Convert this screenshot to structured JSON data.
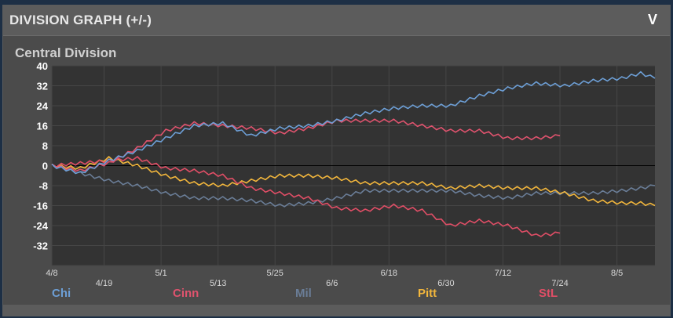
{
  "header": {
    "title": "DIVISION GRAPH (+/-)",
    "collapse_icon": "chevron-down-icon",
    "collapse_label": "V"
  },
  "chart_data": {
    "type": "line",
    "title": "Central Division",
    "xlabel": "",
    "ylabel": "",
    "ylim": [
      -40,
      40
    ],
    "y_ticks": [
      40,
      32,
      24,
      16,
      8,
      0,
      -8,
      -16,
      -24,
      -32
    ],
    "x_ticks": [
      "4/8",
      "4/19",
      "5/1",
      "5/13",
      "5/25",
      "6/6",
      "6/18",
      "6/30",
      "7/12",
      "7/24",
      "8/5"
    ],
    "x_tick_days": [
      0,
      11,
      23,
      35,
      47,
      59,
      71,
      83,
      95,
      107,
      119
    ],
    "x_range_days": [
      0,
      127
    ],
    "grid": true,
    "legend_position": "bottom",
    "series": [
      {
        "name": "Chi",
        "color": "#6d9fd6",
        "x": [
          0,
          6,
          12,
          18,
          24,
          30,
          36,
          42,
          48,
          54,
          60,
          66,
          72,
          78,
          84,
          90,
          96,
          102,
          108,
          114,
          120,
          124,
          127
        ],
        "values": [
          0,
          -3,
          2,
          6,
          11,
          16,
          17,
          12,
          15,
          16,
          18,
          21,
          23,
          24,
          24,
          28,
          31,
          33,
          32,
          34,
          35,
          37,
          35
        ]
      },
      {
        "name": "Cinn",
        "color": "#e0536e",
        "x": [
          0,
          6,
          12,
          18,
          24,
          30,
          36,
          42,
          48,
          54,
          60,
          66,
          72,
          78,
          84,
          90,
          96,
          102,
          107
        ],
        "values": [
          0,
          -2,
          1,
          7,
          14,
          17,
          16,
          15,
          13,
          15,
          18,
          18,
          18,
          16,
          14,
          14,
          11,
          11,
          12
        ]
      },
      {
        "name": "Mil",
        "color": "#6a7d97",
        "x": [
          0,
          6,
          12,
          18,
          24,
          30,
          36,
          42,
          48,
          54,
          60,
          66,
          72,
          78,
          84,
          90,
          96,
          102,
          108,
          114,
          120,
          124,
          127
        ],
        "values": [
          0,
          -3,
          -6,
          -8,
          -11,
          -13,
          -13,
          -14,
          -16,
          -15,
          -13,
          -10,
          -10,
          -10,
          -10,
          -12,
          -13,
          -11,
          -11,
          -11,
          -10,
          -9,
          -8
        ]
      },
      {
        "name": "Pitt",
        "color": "#f2b63c",
        "x": [
          0,
          6,
          12,
          18,
          24,
          30,
          36,
          42,
          48,
          54,
          60,
          66,
          72,
          78,
          84,
          90,
          96,
          102,
          108,
          114,
          120,
          124,
          127
        ],
        "values": [
          0,
          -1,
          3,
          0,
          -4,
          -7,
          -8,
          -6,
          -4,
          -4,
          -5,
          -7,
          -7,
          -7,
          -9,
          -8,
          -9,
          -9,
          -11,
          -14,
          -15,
          -15,
          -16
        ]
      },
      {
        "name": "StL",
        "color": "#e04e66",
        "x": [
          0,
          6,
          12,
          18,
          24,
          30,
          36,
          42,
          48,
          54,
          60,
          66,
          72,
          78,
          84,
          90,
          96,
          102,
          107
        ],
        "values": [
          0,
          1,
          2,
          3,
          -1,
          -2,
          -4,
          -9,
          -11,
          -13,
          -17,
          -18,
          -16,
          -18,
          -24,
          -22,
          -24,
          -28,
          -27
        ]
      }
    ]
  }
}
